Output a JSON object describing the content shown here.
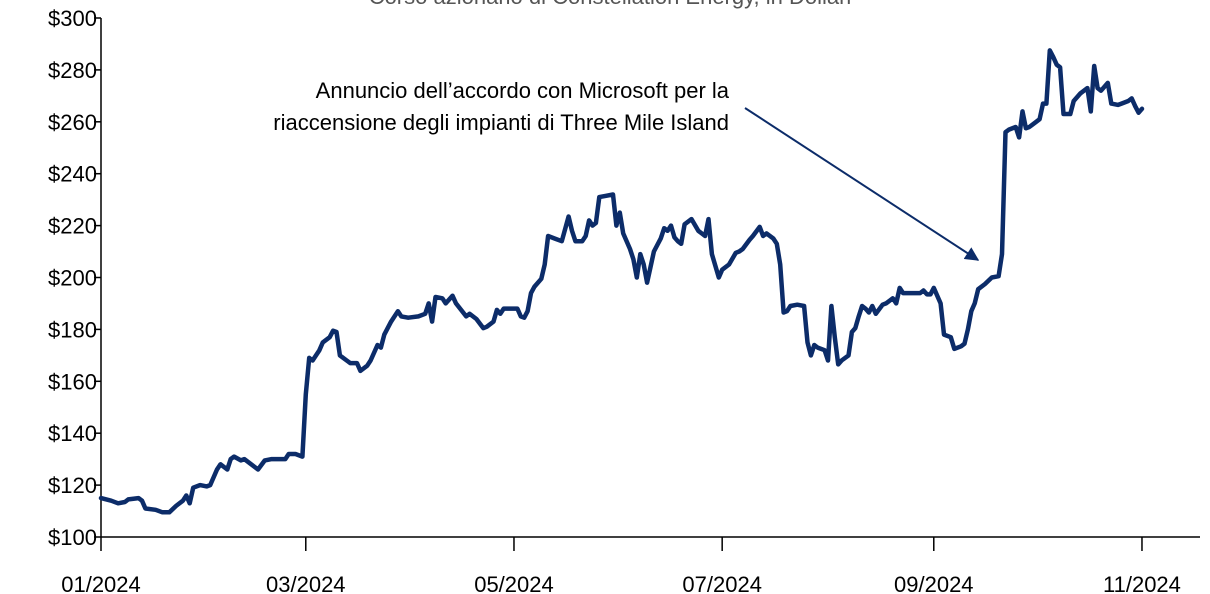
{
  "chart_data": {
    "type": "line",
    "title": "Corso azionario di Constellation Energy, in Dollari",
    "annotation": [
      "Annuncio dell’accordo con Microsoft per la",
      "riaccensione degli impianti di Three Mile Island"
    ],
    "color": "#0c2c69",
    "xlim": [
      0,
      322
    ],
    "xticks": [
      {
        "value": 0,
        "label": "01/2024"
      },
      {
        "value": 60,
        "label": "03/2024"
      },
      {
        "value": 121,
        "label": "05/2024"
      },
      {
        "value": 182,
        "label": "07/2024"
      },
      {
        "value": 244,
        "label": "09/2024"
      },
      {
        "value": 305,
        "label": "11/2024"
      }
    ],
    "ylim": [
      100,
      300
    ],
    "yticks": [
      {
        "value": 100,
        "label": "$100"
      },
      {
        "value": 120,
        "label": "$120"
      },
      {
        "value": 140,
        "label": "$140"
      },
      {
        "value": 160,
        "label": "$160"
      },
      {
        "value": 180,
        "label": "$180"
      },
      {
        "value": 200,
        "label": "$200"
      },
      {
        "value": 220,
        "label": "$220"
      },
      {
        "value": 240,
        "label": "$240"
      },
      {
        "value": 260,
        "label": "$260"
      },
      {
        "value": 280,
        "label": "$280"
      },
      {
        "value": 300,
        "label": "$300"
      }
    ],
    "x": [
      0,
      3,
      5,
      7,
      8,
      11,
      12,
      13,
      16,
      18,
      20,
      22,
      24,
      25,
      26,
      27,
      29,
      31,
      32,
      34,
      35,
      37,
      38,
      39,
      41,
      42,
      44,
      46,
      48,
      50,
      52,
      54,
      55,
      57,
      59,
      60,
      61,
      62,
      64,
      65,
      67,
      68,
      69,
      70,
      72,
      73,
      75,
      76,
      78,
      79,
      81,
      82,
      83,
      85,
      87,
      88,
      90,
      93,
      95,
      96,
      97,
      98,
      100,
      101,
      103,
      104,
      107,
      108,
      110,
      112,
      113,
      115,
      116,
      117,
      118,
      120,
      122,
      123,
      124,
      125,
      126,
      127,
      129,
      130,
      131,
      133,
      135,
      137,
      138,
      139,
      141,
      142,
      143,
      144,
      145,
      146,
      148,
      150,
      151,
      152,
      153,
      155,
      156,
      157,
      158,
      159,
      160,
      161,
      162,
      164,
      165,
      166,
      167,
      168,
      169,
      170,
      171,
      173,
      175,
      176,
      177,
      178,
      179,
      181,
      182,
      184,
      186,
      187,
      188,
      190,
      191,
      193,
      194,
      195,
      197,
      198,
      199,
      200,
      201,
      202,
      204,
      206,
      207,
      208,
      209,
      210,
      212,
      213,
      214,
      215,
      216,
      217,
      219,
      220,
      221,
      222,
      223,
      224,
      225,
      226,
      227,
      229,
      230,
      232,
      233,
      234,
      235,
      237,
      240,
      241,
      242,
      243,
      244,
      246,
      247,
      249,
      250,
      252,
      253,
      254,
      255,
      256,
      257,
      259,
      261,
      263,
      264,
      265,
      266,
      268,
      269,
      270,
      271,
      272,
      274,
      275,
      276,
      277,
      278,
      279,
      280,
      281,
      282,
      284,
      285,
      287,
      289,
      290,
      291,
      292,
      293,
      295,
      296,
      298,
      299,
      301,
      302,
      303,
      304,
      305
    ],
    "values": [
      115,
      114,
      113,
      113.5,
      114.5,
      115,
      114,
      111,
      110.5,
      109.5,
      109.5,
      112,
      114,
      116,
      113,
      119,
      120,
      119.5,
      120,
      126,
      128,
      126,
      130,
      131,
      129.5,
      130,
      128,
      126,
      129.5,
      130,
      130,
      130,
      132,
      132,
      131,
      155,
      169,
      168,
      172,
      175,
      177,
      179.5,
      179,
      170,
      168,
      167,
      167,
      164,
      166,
      168,
      174,
      173,
      178,
      183,
      187,
      185,
      184.5,
      185,
      186,
      190,
      183,
      192.5,
      192,
      190,
      193,
      190,
      185,
      186,
      184,
      180.5,
      181,
      183,
      187.5,
      186,
      188,
      188,
      188,
      185,
      184.5,
      187,
      194,
      196.5,
      199.5,
      205,
      216,
      215,
      214,
      223.5,
      218,
      214,
      214,
      216,
      222,
      220,
      221,
      231,
      231.5,
      232,
      220,
      225,
      217,
      211,
      207,
      200,
      209,
      205,
      198,
      204,
      210,
      215,
      219,
      218,
      220,
      215.5,
      214,
      213,
      220.5,
      222.5,
      218,
      217,
      216,
      222.5,
      209,
      200,
      203,
      205,
      209.5,
      210,
      211,
      214.5,
      216,
      219.5,
      216,
      217,
      215,
      213,
      205,
      186.5,
      187,
      189,
      189.5,
      189,
      175,
      170,
      174,
      173,
      172,
      168,
      189,
      177,
      166.5,
      168,
      170,
      179,
      180.5,
      185,
      189,
      188,
      186.5,
      189,
      186,
      189.5,
      190,
      192,
      190,
      196,
      194,
      194,
      194,
      195,
      193.5,
      193.5,
      196,
      190,
      178,
      177,
      172.5,
      173.5,
      174.5,
      180,
      187,
      190,
      195.5,
      197.5,
      200,
      200.5,
      209,
      256,
      257,
      258,
      254,
      264,
      257.5,
      258,
      260,
      261,
      267,
      267,
      287.5,
      285,
      282,
      281,
      263,
      263,
      268,
      271,
      273,
      264,
      281.5,
      273,
      272,
      275,
      267,
      266.5,
      267,
      268,
      269,
      266,
      263.5,
      265
    ]
  }
}
